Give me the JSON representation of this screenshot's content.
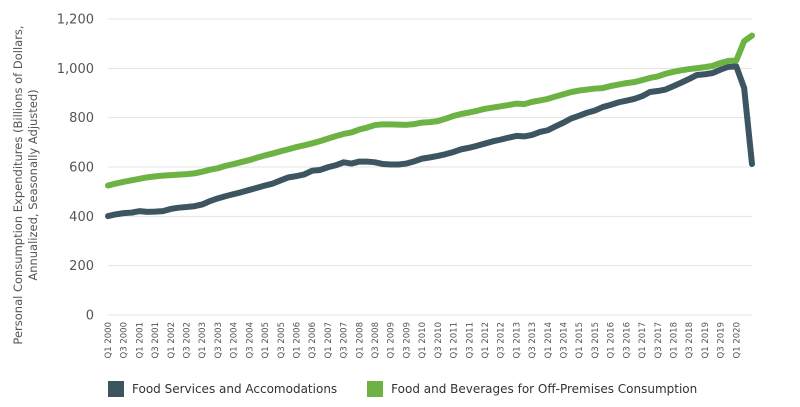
{
  "chart_data": {
    "type": "line",
    "ylabel": "Personal Consumption Expenditures (Billions of Dollars, Annualized, Seasonally Adjusted)",
    "ylim": [
      0,
      1200
    ],
    "yticks": [
      "0",
      "200",
      "400",
      "600",
      "800",
      "1,000",
      "1,200"
    ],
    "ytick_values": [
      0,
      200,
      400,
      600,
      800,
      1000,
      1200
    ],
    "grid": "horizontal",
    "legend_position": "bottom-left",
    "x_tick_labels": [
      "Q1 2000",
      "Q3 2000",
      "Q1 2001",
      "Q3 2001",
      "Q1 2002",
      "Q3 2002",
      "Q1 2003",
      "Q3 2003",
      "Q1 2004",
      "Q3 2004",
      "Q1 2005",
      "Q3 2005",
      "Q1 2006",
      "Q3 2006",
      "Q1 2007",
      "Q3 2007",
      "Q1 2008",
      "Q3 2008",
      "Q1 2009",
      "Q3 2009",
      "Q1 2010",
      "Q3 2010",
      "Q1 2011",
      "Q3 2011",
      "Q1 2012",
      "Q3 2012",
      "Q1 2013",
      "Q3 2013",
      "Q1 2014",
      "Q3 2014",
      "Q1 2015",
      "Q3 2015",
      "Q1 2016",
      "Q3 2016",
      "Q1 2017",
      "Q3 2017",
      "Q1 2018",
      "Q3 2018",
      "Q1 2019",
      "Q3 2019",
      "Q1 2020"
    ],
    "series": [
      {
        "name": "Food Services and Accomodations",
        "color": "#3d5560",
        "values": [
          401,
          408,
          413,
          415,
          421,
          418,
          419,
          421,
          430,
          435,
          438,
          441,
          448,
          462,
          473,
          482,
          490,
          498,
          507,
          516,
          525,
          533,
          546,
          558,
          563,
          570,
          585,
          588,
          599,
          607,
          619,
          614,
          622,
          622,
          619,
          612,
          610,
          610,
          614,
          623,
          634,
          639,
          645,
          652,
          661,
          672,
          678,
          686,
          695,
          704,
          711,
          719,
          726,
          724,
          730,
          742,
          749,
          765,
          780,
          797,
          808,
          820,
          829,
          843,
          852,
          862,
          869,
          876,
          887,
          904,
          908,
          914,
          928,
          942,
          957,
          973,
          976,
          981,
          995,
          1006,
          1008,
          920,
          612
        ]
      },
      {
        "name": "Food and Beverages for Off-Premises Consumption",
        "color": "#6db344",
        "values": [
          525,
          533,
          540,
          546,
          552,
          558,
          562,
          565,
          567,
          569,
          571,
          574,
          581,
          589,
          595,
          605,
          612,
          620,
          628,
          638,
          647,
          655,
          664,
          672,
          681,
          688,
          696,
          705,
          715,
          725,
          734,
          740,
          752,
          760,
          770,
          773,
          773,
          772,
          771,
          774,
          780,
          782,
          786,
          796,
          807,
          815,
          821,
          828,
          836,
          841,
          846,
          851,
          857,
          855,
          864,
          870,
          876,
          886,
          895,
          904,
          910,
          914,
          918,
          920,
          928,
          934,
          940,
          944,
          952,
          961,
          967,
          978,
          986,
          992,
          997,
          1001,
          1005,
          1010,
          1022,
          1030,
          1032,
          1110,
          1133
        ]
      }
    ]
  }
}
